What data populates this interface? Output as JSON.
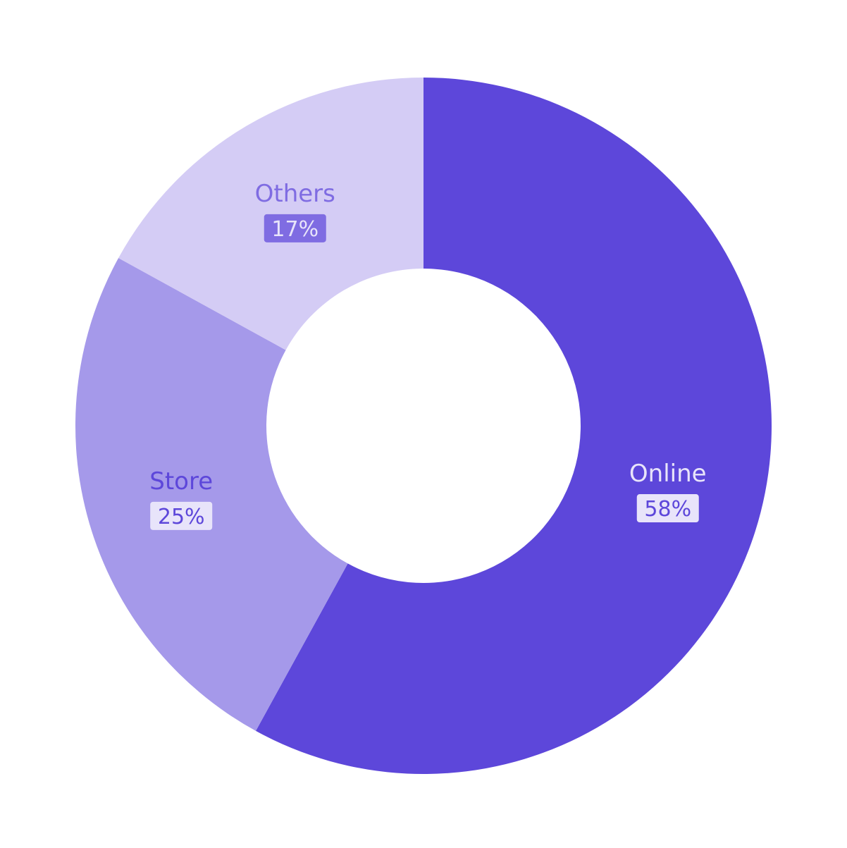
{
  "chart_data": {
    "type": "pie",
    "variant": "donut",
    "title": "",
    "slices": [
      {
        "label": "Online",
        "value": 58,
        "percent_label": "58%",
        "color": "#5D47DA",
        "label_color": "#E8E4FA",
        "badge_color": "#E8E4FA",
        "badge_text_color": "#5D47DA"
      },
      {
        "label": "Store",
        "value": 25,
        "percent_label": "25%",
        "color": "#A599EA",
        "label_color": "#5D47DA",
        "badge_color": "#E8E4FA",
        "badge_text_color": "#5D47DA"
      },
      {
        "label": "Others",
        "value": 17,
        "percent_label": "17%",
        "color": "#D4CCF5",
        "label_color": "#7F6CE2",
        "badge_color": "#7F6CE2",
        "badge_text_color": "#E8E4FA"
      }
    ],
    "legend": "none"
  }
}
